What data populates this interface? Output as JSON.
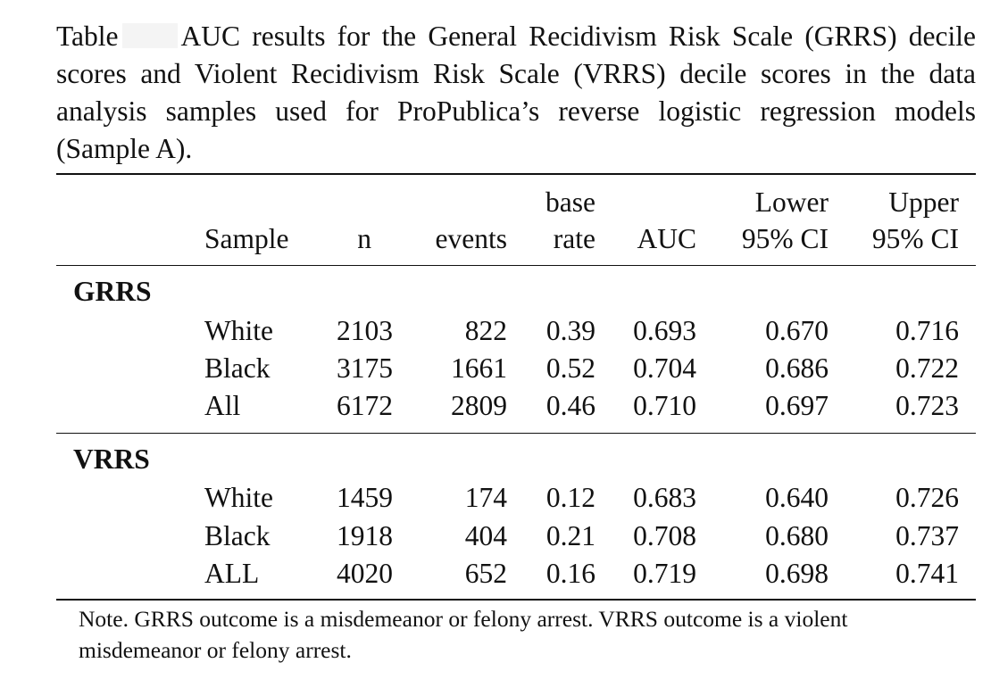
{
  "caption": {
    "prefix": "Table",
    "text": "AUC results for the General Recidivism Risk Scale (GRRS) decile scores and Violent Recidivism Risk Scale (VRRS) decile scores in the data analysis samples used for ProPublica’s reverse logistic regression models (Sample A)."
  },
  "table": {
    "headers": {
      "sample": "Sample",
      "n": "n",
      "events": "events",
      "base_rate_line1": "base",
      "base_rate_line2": "rate",
      "auc": "AUC",
      "lower_line1": "Lower",
      "lower_line2": "95% CI",
      "upper_line1": "Upper",
      "upper_line2": "95% CI"
    },
    "groups": [
      {
        "name": "GRRS",
        "rows": [
          {
            "sample": "White",
            "n": "2103",
            "events": "822",
            "base_rate": "0.39",
            "auc": "0.693",
            "lower": "0.670",
            "upper": "0.716"
          },
          {
            "sample": "Black",
            "n": "3175",
            "events": "1661",
            "base_rate": "0.52",
            "auc": "0.704",
            "lower": "0.686",
            "upper": "0.722"
          },
          {
            "sample": "All",
            "n": "6172",
            "events": "2809",
            "base_rate": "0.46",
            "auc": "0.710",
            "lower": "0.697",
            "upper": "0.723"
          }
        ]
      },
      {
        "name": "VRRS",
        "rows": [
          {
            "sample": "White",
            "n": "1459",
            "events": "174",
            "base_rate": "0.12",
            "auc": "0.683",
            "lower": "0.640",
            "upper": "0.726"
          },
          {
            "sample": "Black",
            "n": "1918",
            "events": "404",
            "base_rate": "0.21",
            "auc": "0.708",
            "lower": "0.680",
            "upper": "0.737"
          },
          {
            "sample": "ALL",
            "n": "4020",
            "events": "652",
            "base_rate": "0.16",
            "auc": "0.719",
            "lower": "0.698",
            "upper": "0.741"
          }
        ]
      }
    ]
  },
  "note": "Note. GRRS outcome is a misdemeanor or felony arrest. VRRS outcome is a violent misdemeanor or felony arrest."
}
